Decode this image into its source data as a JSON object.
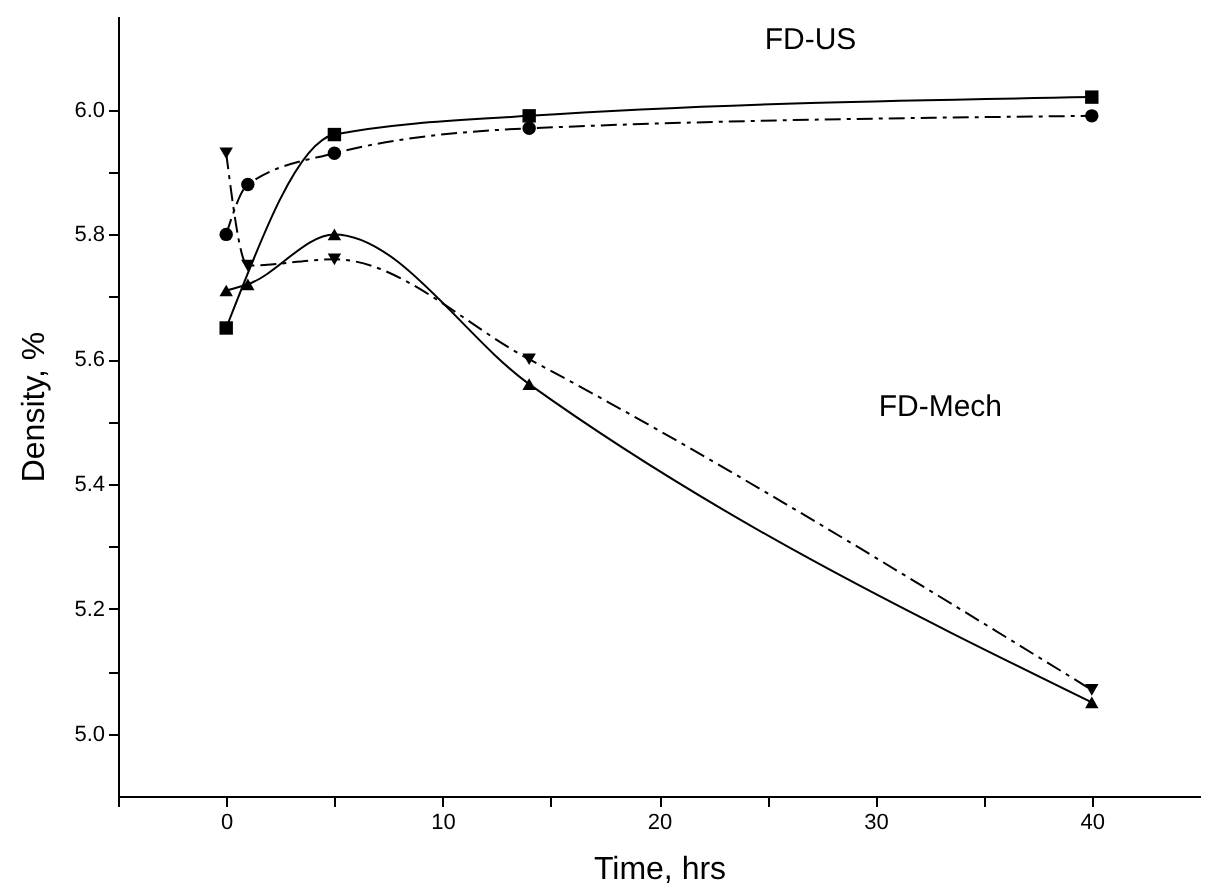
{
  "chart_data": {
    "type": "line",
    "xlabel": "Time, hrs",
    "ylabel": "Density, %",
    "xlim": [
      -5,
      45
    ],
    "ylim": [
      4.9,
      6.15
    ],
    "xticks": [
      {
        "value": -5,
        "label": null
      },
      0,
      {
        "value": 5,
        "label": null
      },
      10,
      {
        "value": 15,
        "label": null
      },
      20,
      {
        "value": 25,
        "label": null
      },
      30,
      {
        "value": 35,
        "label": null
      },
      40
    ],
    "yticks": [
      {
        "value": 5.0,
        "label": "5.0"
      },
      {
        "value": 5.1,
        "label": null
      },
      5.2,
      {
        "value": 5.3,
        "label": null
      },
      5.4,
      {
        "value": 5.5,
        "label": null
      },
      5.6,
      {
        "value": 5.7,
        "label": null
      },
      5.8,
      {
        "value": 5.9,
        "label": null
      },
      {
        "value": 6.0,
        "label": "6.0"
      }
    ],
    "grid": false,
    "series": [
      {
        "color": "#000000",
        "marker": "square",
        "line_style": "solid",
        "x": [
          0,
          5,
          14,
          40
        ],
        "values": [
          5.65,
          5.96,
          5.99,
          6.02
        ]
      },
      {
        "color": "#000000",
        "marker": "circle",
        "line_style": "dashed",
        "x": [
          0,
          1,
          5,
          14,
          40
        ],
        "values": [
          5.8,
          5.88,
          5.93,
          5.97,
          5.99
        ]
      },
      {
        "color": "#000000",
        "marker": "triangle",
        "line_style": "solid",
        "x": [
          0,
          1,
          5,
          14,
          40
        ],
        "values": [
          5.71,
          5.72,
          5.8,
          5.56,
          5.05
        ]
      },
      {
        "color": "#000000",
        "marker": "triangle-down",
        "line_style": "dashed",
        "x": [
          0,
          1,
          5,
          14,
          40
        ],
        "values": [
          5.93,
          5.75,
          5.76,
          5.6,
          5.07
        ]
      }
    ],
    "annotations": [
      "FD-US",
      "FD-Mech"
    ]
  }
}
